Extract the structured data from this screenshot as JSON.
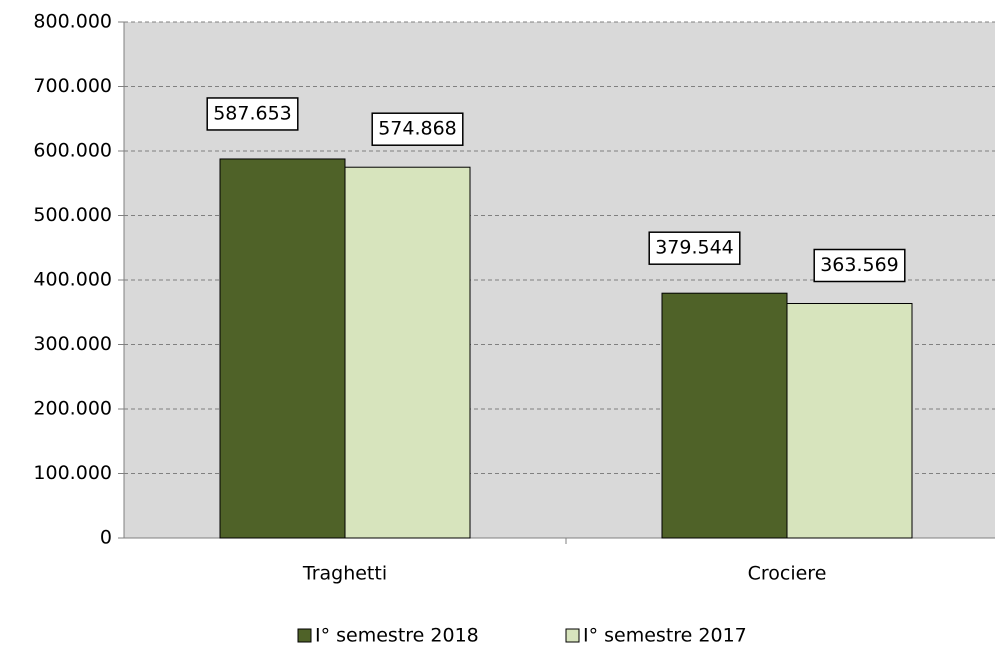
{
  "chart_data": {
    "type": "bar",
    "categories": [
      "Traghetti",
      "Crociere"
    ],
    "series": [
      {
        "name": "I° semestre 2018",
        "color": "#4f6228",
        "values": [
          587653,
          379544
        ],
        "value_labels": [
          "587.653",
          "379.544"
        ]
      },
      {
        "name": "I° semestre 2017",
        "color": "#d7e4bd",
        "values": [
          574868,
          363569
        ],
        "value_labels": [
          "574.868",
          "363.569"
        ]
      }
    ],
    "ylim": [
      0,
      800000
    ],
    "yticks": [
      0,
      {
        "value": 100000,
        "label": "100.000"
      },
      {
        "value": 200000,
        "label": "200.000"
      },
      {
        "value": 300000,
        "label": "300.000"
      },
      {
        "value": 400000,
        "label": "400.000"
      },
      {
        "value": 500000,
        "label": "500.000"
      },
      {
        "value": 600000,
        "label": "600.000"
      },
      {
        "value": 700000,
        "label": "700.000"
      },
      {
        "value": 800000,
        "label": "800.000"
      }
    ],
    "grid": true,
    "legend": "bottom"
  }
}
